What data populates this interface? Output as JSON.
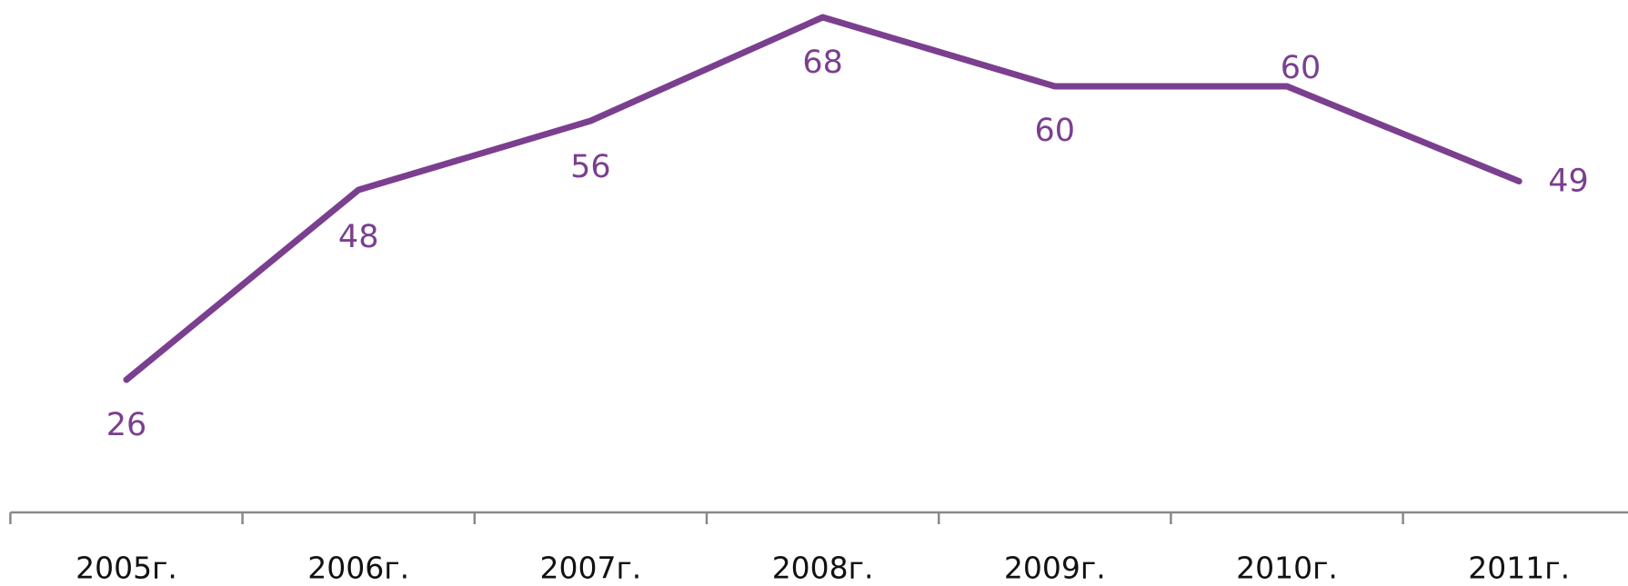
{
  "chart_data": {
    "type": "line",
    "categories": [
      "2005г.",
      "2006г.",
      "2007г.",
      "2008г.",
      "2009г.",
      "2010г.",
      "2011г."
    ],
    "series": [
      {
        "name": "",
        "color": "#7b3f8f",
        "values": [
          26,
          48,
          56,
          68,
          60,
          60,
          49
        ]
      }
    ],
    "ylim": [
      10,
      70
    ]
  }
}
